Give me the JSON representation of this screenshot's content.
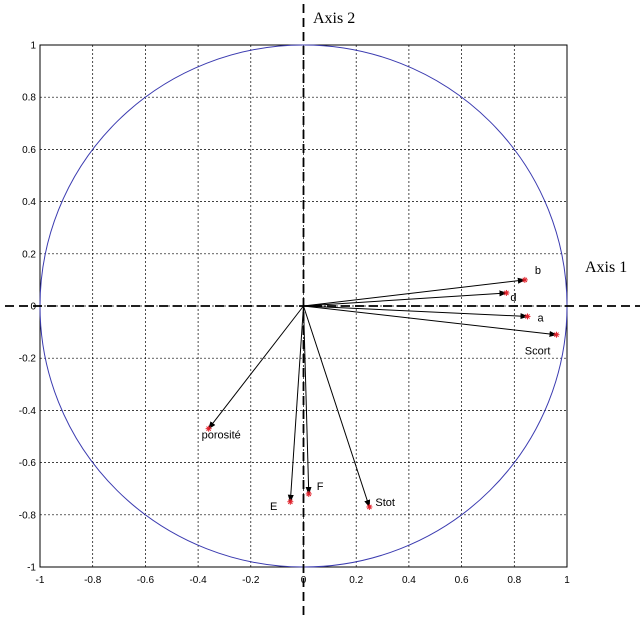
{
  "chart_data": {
    "type": "scatter",
    "title": "",
    "xlim": [
      -1,
      1
    ],
    "ylim": [
      -1,
      1
    ],
    "x_ticks": [
      -1,
      -0.8,
      -0.6,
      -0.4,
      -0.2,
      0,
      0.2,
      0.4,
      0.6,
      0.8,
      1
    ],
    "y_ticks": [
      1,
      0.8,
      0.6,
      0.4,
      0.2,
      0,
      -0.2,
      -0.4,
      -0.6,
      -0.8,
      -1
    ],
    "x_tick_labels": [
      "-1",
      "-0.8",
      "-0.6",
      "-0.4",
      "-0.2",
      "0",
      "0.2",
      "0.4",
      "0.6",
      "0.8",
      "1"
    ],
    "y_tick_labels": [
      "1",
      "0.8",
      "0.6",
      "0.4",
      "0.2",
      "0",
      "-0.2",
      "-0.4",
      "-0.6",
      "-0.8",
      "-1"
    ],
    "grid": true,
    "unit_circle": true,
    "axis_titles": {
      "axis1": "Axis 1",
      "axis2": "Axis 2"
    },
    "vectors": [
      {
        "name": "b",
        "x": 0.84,
        "y": 0.1
      },
      {
        "name": "d",
        "x": 0.77,
        "y": 0.05
      },
      {
        "name": "a",
        "x": 0.85,
        "y": -0.04
      },
      {
        "name": "Scort",
        "x": 0.96,
        "y": -0.11
      },
      {
        "name": "porosité",
        "x": -0.36,
        "y": -0.47
      },
      {
        "name": "E",
        "x": -0.05,
        "y": -0.75
      },
      {
        "name": "F",
        "x": 0.02,
        "y": -0.72
      },
      {
        "name": "Stot",
        "x": 0.25,
        "y": -0.77
      }
    ],
    "colors": {
      "circle": "#3b3bb0",
      "marker": "#e0202a",
      "grid": "#000000"
    }
  }
}
